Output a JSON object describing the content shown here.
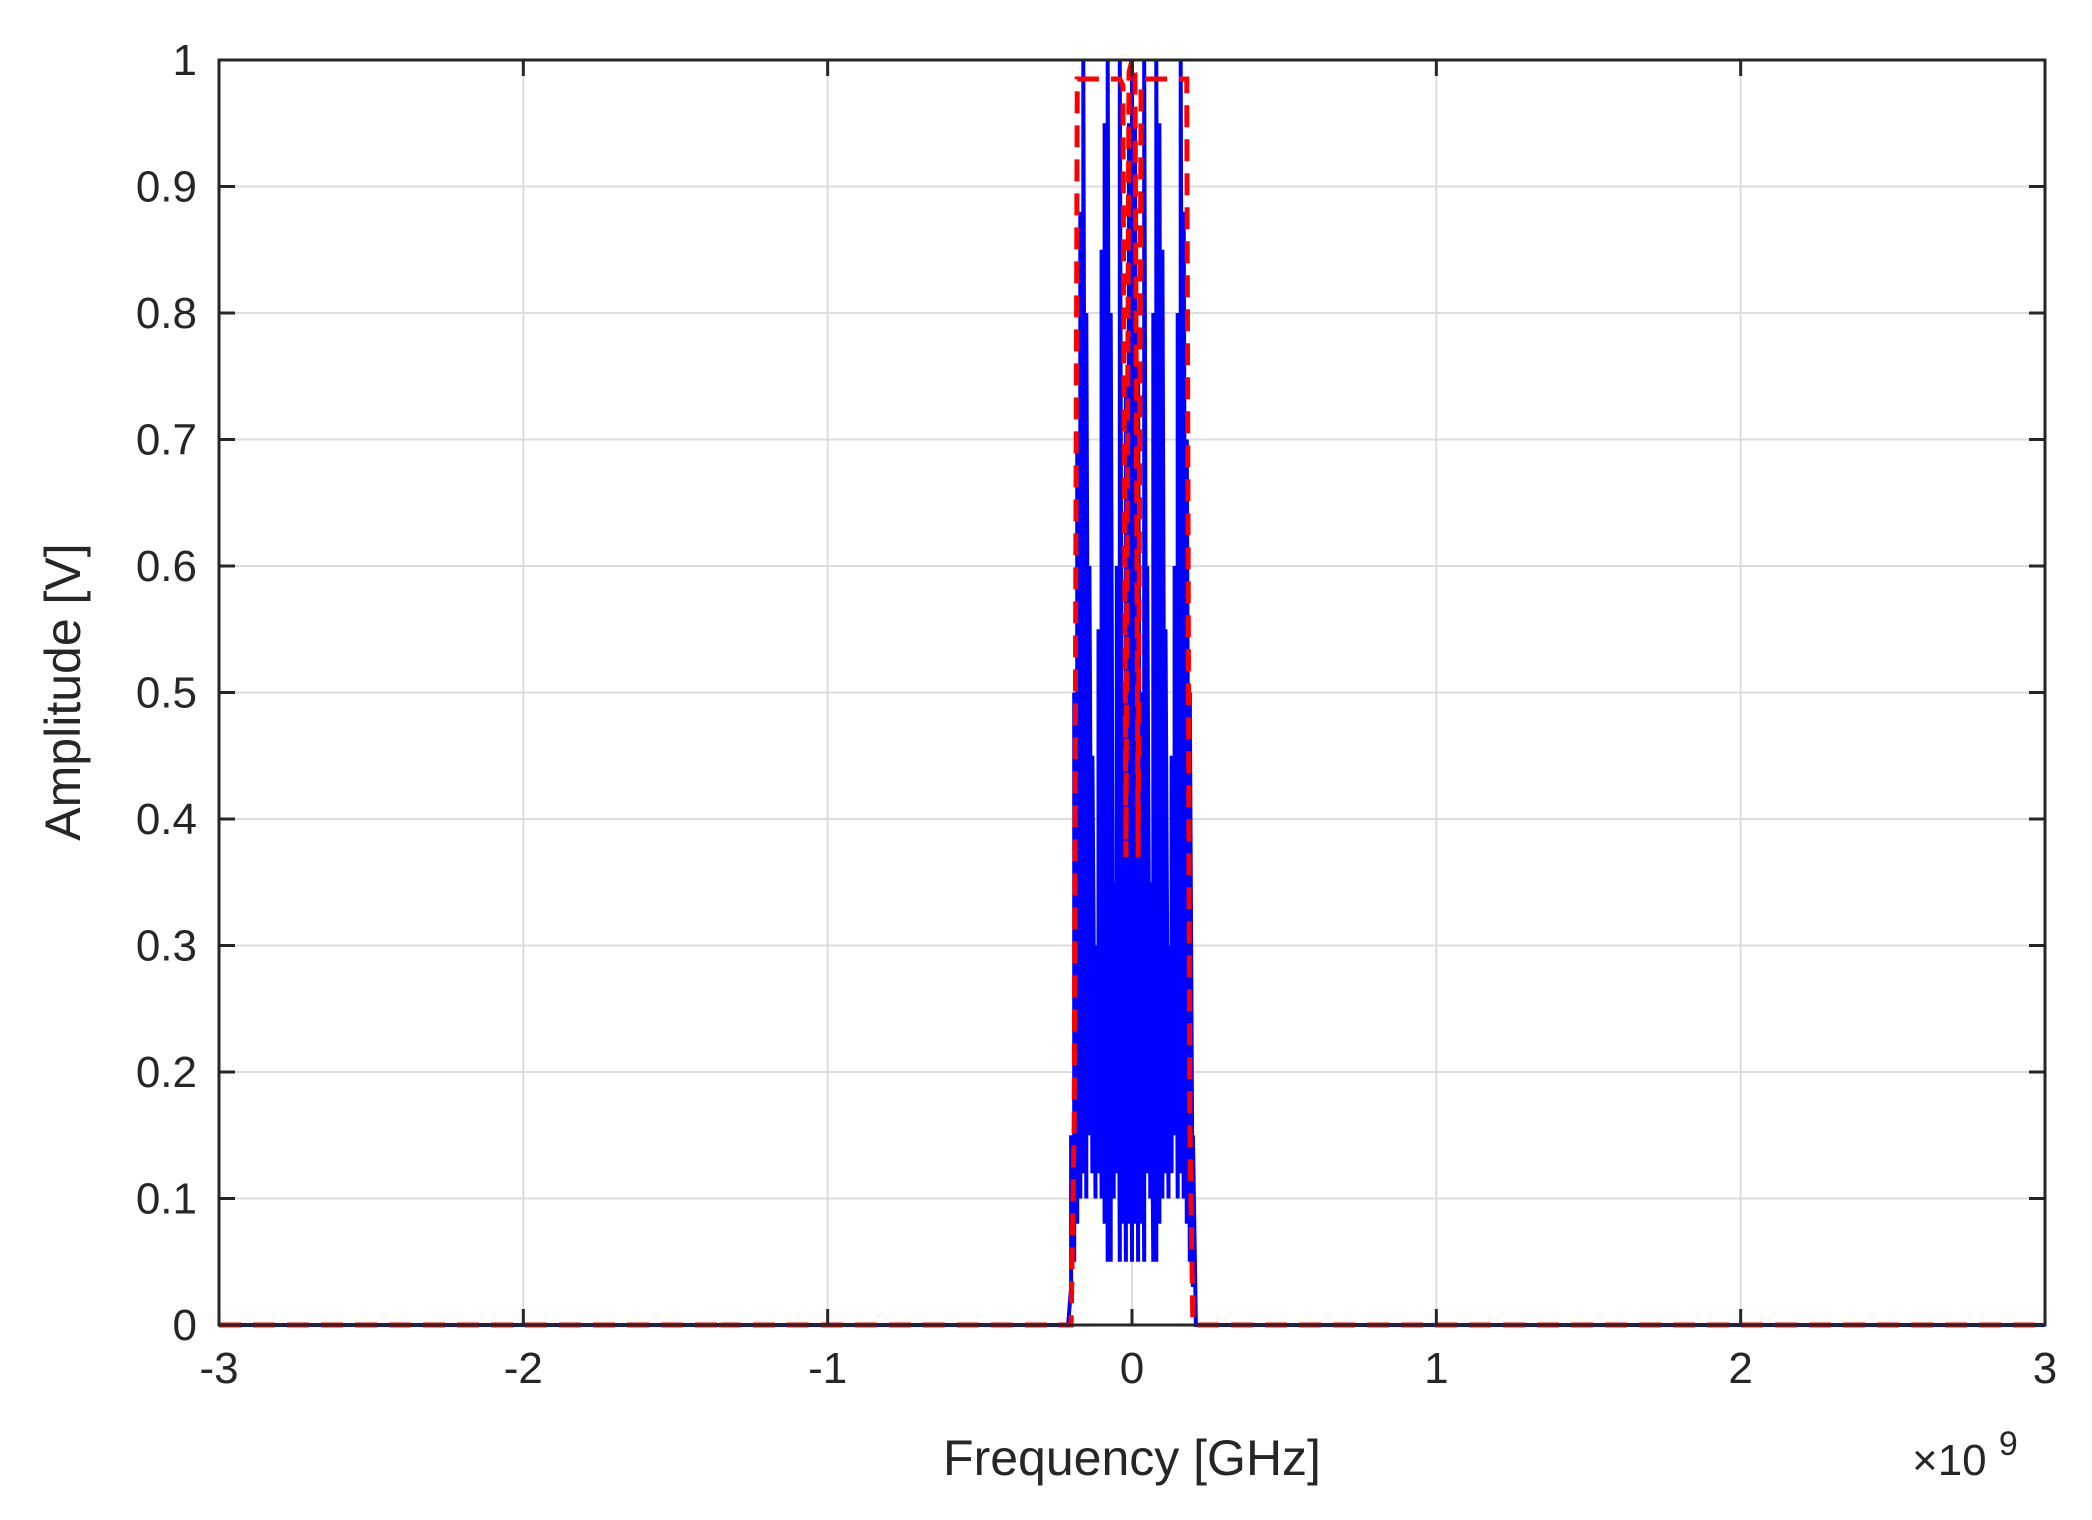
{
  "chart_data": {
    "type": "line",
    "title": "",
    "xlabel": "Frequency [GHz]",
    "ylabel": "Amplitude [V]",
    "x_exponent_label": "×10",
    "x_exponent_power": "9",
    "xlim": [
      -3,
      3
    ],
    "ylim": [
      0,
      1
    ],
    "xticks": [
      -3,
      -2,
      -1,
      0,
      1,
      2,
      3
    ],
    "xtick_labels": [
      "-3",
      "-2",
      "-1",
      "0",
      "1",
      "2",
      "3"
    ],
    "yticks": [
      0,
      0.1,
      0.2,
      0.3,
      0.4,
      0.5,
      0.6,
      0.7,
      0.8,
      0.9,
      1
    ],
    "ytick_labels": [
      "0",
      "0.1",
      "0.2",
      "0.3",
      "0.4",
      "0.5",
      "0.6",
      "0.7",
      "0.8",
      "0.9",
      "1"
    ],
    "grid": true,
    "legend": null,
    "series": [
      {
        "color": "#0000ff",
        "style": "solid",
        "x": [
          -3,
          -0.21,
          -0.2,
          -0.2,
          -0.19,
          -0.19,
          -0.18,
          -0.18,
          -0.17,
          -0.17,
          -0.16,
          -0.16,
          -0.15,
          -0.15,
          -0.14,
          -0.14,
          -0.13,
          -0.13,
          -0.12,
          -0.12,
          -0.11,
          -0.11,
          -0.1,
          -0.1,
          -0.09,
          -0.09,
          -0.08,
          -0.08,
          -0.07,
          -0.07,
          -0.06,
          -0.06,
          -0.05,
          -0.05,
          -0.04,
          -0.04,
          -0.03,
          -0.03,
          -0.02,
          -0.02,
          -0.01,
          -0.01,
          0,
          0,
          0.01,
          0.01,
          0.02,
          0.02,
          0.03,
          0.03,
          0.04,
          0.04,
          0.05,
          0.05,
          0.06,
          0.06,
          0.07,
          0.07,
          0.08,
          0.08,
          0.09,
          0.09,
          0.1,
          0.1,
          0.11,
          0.11,
          0.12,
          0.12,
          0.13,
          0.13,
          0.14,
          0.14,
          0.15,
          0.15,
          0.16,
          0.16,
          0.17,
          0.17,
          0.18,
          0.18,
          0.19,
          0.19,
          0.2,
          0.2,
          0.21,
          3
        ],
        "y": [
          0,
          0,
          0.03,
          0.15,
          0.05,
          0.5,
          0.08,
          0.7,
          0.1,
          0.88,
          0.12,
          1.0,
          0.1,
          0.8,
          0.15,
          0.6,
          0.12,
          0.45,
          0.1,
          0.3,
          0.12,
          0.55,
          0.1,
          0.85,
          0.08,
          0.95,
          0.05,
          1.0,
          0.05,
          0.8,
          0.1,
          0.35,
          0.12,
          0.6,
          0.05,
          1.0,
          0.08,
          0.5,
          0.05,
          0.75,
          0.08,
          0.95,
          0.05,
          1.0,
          0.08,
          0.95,
          0.05,
          0.75,
          0.08,
          0.5,
          0.05,
          1.0,
          0.12,
          0.6,
          0.1,
          0.35,
          0.05,
          0.8,
          0.05,
          1.0,
          0.08,
          0.95,
          0.1,
          0.85,
          0.12,
          0.55,
          0.1,
          0.3,
          0.12,
          0.45,
          0.15,
          0.6,
          0.1,
          0.8,
          0.12,
          1.0,
          0.1,
          0.88,
          0.08,
          0.7,
          0.05,
          0.5,
          0.03,
          0.15,
          0,
          0
        ]
      },
      {
        "color": "#ff0000",
        "style": "dashed",
        "x": [
          -3,
          -1.35,
          -1.35,
          -1.35,
          -0.2,
          -0.19,
          -0.18,
          -0.18,
          -0.04,
          -0.03,
          -0.02,
          -0.01,
          0,
          0.01,
          0.02,
          0.03,
          0.04,
          0.18,
          0.18,
          0.19,
          0.2,
          3
        ],
        "y": [
          0,
          0,
          0.004,
          0,
          0,
          0.16,
          0.97,
          0.985,
          0.985,
          0.98,
          0.37,
          0.99,
          1.0,
          0.99,
          0.37,
          0.98,
          0.985,
          0.985,
          0.97,
          0.16,
          0,
          0
        ]
      }
    ]
  }
}
